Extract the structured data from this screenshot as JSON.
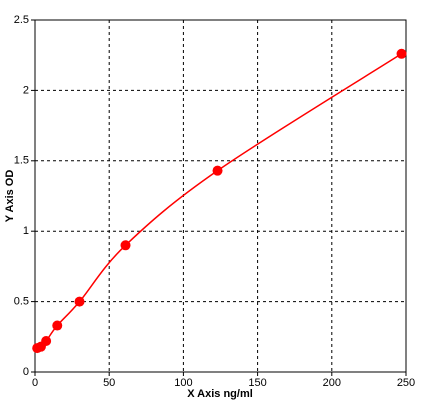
{
  "chart_data": {
    "type": "scatter-curve",
    "xlabel": "X Axis ng/ml",
    "ylabel": "Y Axis OD",
    "series": [
      {
        "color": "#ff0000",
        "x": [
          1.5,
          4,
          7.5,
          15,
          30,
          61,
          123,
          247
        ],
        "values": [
          0.17,
          0.18,
          0.22,
          0.33,
          0.5,
          0.9,
          1.43,
          2.26
        ]
      }
    ],
    "xlim": [
      0,
      250
    ],
    "xticks": [
      0,
      50,
      100,
      150,
      200,
      250
    ],
    "ylim": [
      0,
      2.5
    ],
    "yticks": [
      0,
      0.5,
      1,
      1.5,
      2,
      2.5
    ],
    "grid": true
  }
}
